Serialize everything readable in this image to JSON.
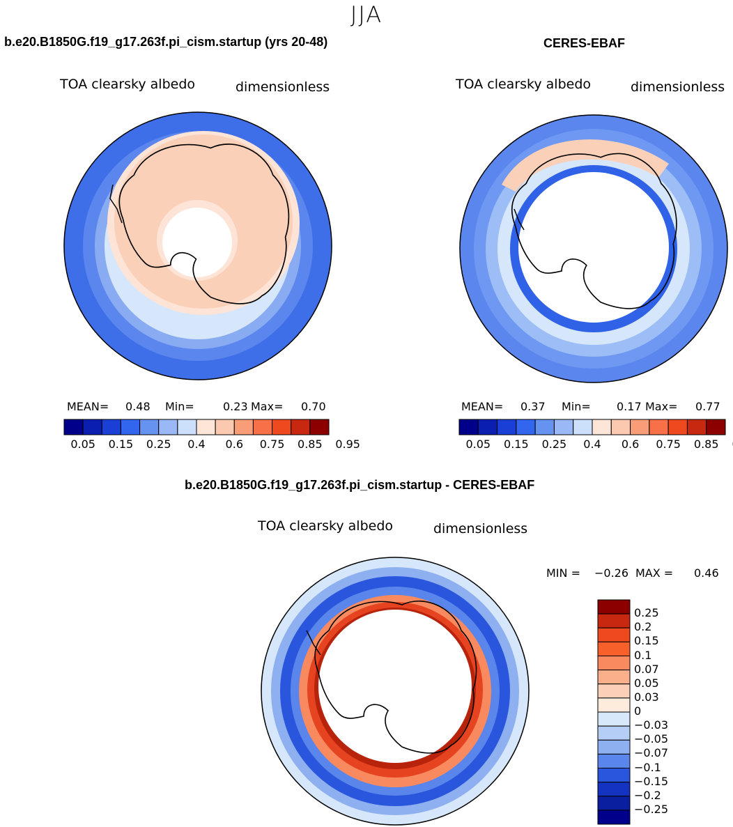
{
  "season": "JJA",
  "panels": [
    {
      "title": "b.e20.B1850G.f19_g17.263f.pi_cism.startup (yrs 20-48)",
      "variable": "TOA clearsky albedo",
      "units": "dimensionless",
      "stats": {
        "mean_label": "MEAN=",
        "mean": "0.48",
        "min_label": "Min=",
        "min": "0.23",
        "max_label": "Max=",
        "max": "0.70"
      }
    },
    {
      "title": "CERES-EBAF",
      "variable": "TOA clearsky albedo",
      "units": "dimensionless",
      "stats": {
        "mean_label": "MEAN=",
        "mean": "0.37",
        "min_label": "Min=",
        "min": "0.17",
        "max_label": "Max=",
        "max": "0.77"
      }
    },
    {
      "title": "b.e20.B1850G.f19_g17.263f.pi_cism.startup - CERES-EBAF",
      "variable": "TOA clearsky albedo",
      "units": "dimensionless",
      "minmax": {
        "min_label": "MIN =",
        "min": "−0.26",
        "max_label": "MAX =",
        "max": "0.46"
      }
    }
  ],
  "colorbar_abs": {
    "colors": [
      "#00008b",
      "#0a1fb0",
      "#1a3fd6",
      "#3366ee",
      "#6693f0",
      "#99b8f5",
      "#cce0fb",
      "#fde5d8",
      "#fbc8b0",
      "#f99c78",
      "#f77048",
      "#ef4a1f",
      "#c8280f",
      "#8c0000"
    ],
    "tick_labels": [
      "0.05",
      "0.15",
      "0.25",
      "0.4",
      "0.6",
      "0.75",
      "0.85",
      "0.95"
    ]
  },
  "colorbar_diff": {
    "colors": [
      "#8c0000",
      "#c8280f",
      "#ef4a1f",
      "#f7602a",
      "#f98a60",
      "#fbb08c",
      "#fcd0b8",
      "#fdebdc",
      "#d8e8fb",
      "#b5cef6",
      "#8eb0f0",
      "#5a85ea",
      "#2a56dd",
      "#1433c0",
      "#0a1fa0",
      "#00008b"
    ],
    "tick_labels": [
      "0.25",
      "0.2",
      "0.15",
      "0.1",
      "0.07",
      "0.05",
      "0.03",
      "0",
      "−0.03",
      "−0.05",
      "−0.07",
      "−0.1",
      "−0.15",
      "−0.2",
      "−0.25"
    ]
  },
  "colors": {
    "ocean_outer": "#4d7ff0",
    "ocean_mid": "#6f98f2",
    "pale_blue": "#d6e6fb",
    "peach": "#fbd0b8",
    "peach_light": "#fde4d6",
    "diff_red": "#e64420",
    "diff_dark_red": "#b8230c",
    "diff_blue": "#2a56dd",
    "coast": "#000000"
  }
}
